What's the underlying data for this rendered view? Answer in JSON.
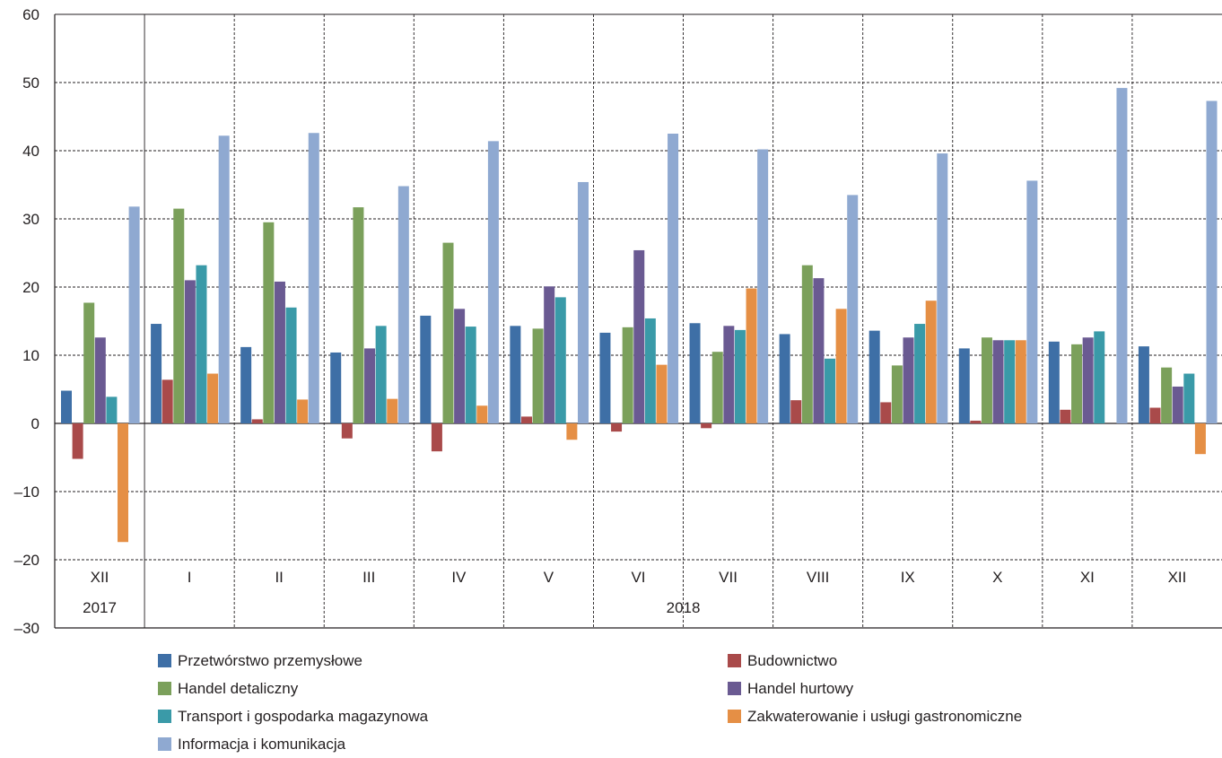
{
  "chart_data": {
    "type": "bar",
    "categories": [
      "XII",
      "I",
      "II",
      "III",
      "IV",
      "V",
      "VI",
      "VII",
      "VIII",
      "IX",
      "X",
      "XI",
      "XII"
    ],
    "year_groups": [
      {
        "label": "2017",
        "span": 1
      },
      {
        "label": "2018",
        "span": 12
      }
    ],
    "ylim": [
      -30,
      60
    ],
    "yticks": [
      -30,
      -20,
      -10,
      0,
      10,
      20,
      30,
      40,
      50,
      60
    ],
    "y_tick_labels": [
      "–30",
      "–20",
      "–10",
      "0",
      "10",
      "20",
      "30",
      "40",
      "50",
      "60"
    ],
    "grid": true,
    "legend_position": "bottom",
    "series": [
      {
        "name": "Przetwórstwo przemysłowe",
        "color": "#3e6fa6",
        "values": [
          4.8,
          14.6,
          11.2,
          10.4,
          15.8,
          14.3,
          13.3,
          14.7,
          13.1,
          13.6,
          11.0,
          12.0,
          11.3
        ]
      },
      {
        "name": "Budownictwo",
        "color": "#a94a4a",
        "values": [
          -5.2,
          6.4,
          0.6,
          -2.2,
          -4.1,
          1.0,
          -1.2,
          -0.7,
          3.4,
          3.1,
          0.4,
          2.0,
          2.3
        ]
      },
      {
        "name": "Handel detaliczny",
        "color": "#7ba05b",
        "values": [
          17.7,
          31.5,
          29.5,
          31.7,
          26.5,
          13.9,
          14.1,
          10.5,
          23.2,
          8.5,
          12.6,
          11.6,
          8.2
        ]
      },
      {
        "name": "Handel hurtowy",
        "color": "#6a5a92",
        "values": [
          12.6,
          21.0,
          20.8,
          11.0,
          16.8,
          20.1,
          25.4,
          14.3,
          21.3,
          12.6,
          12.2,
          12.6,
          5.4
        ]
      },
      {
        "name": "Transport i gospodarka magazynowa",
        "color": "#3a9aa8",
        "values": [
          3.9,
          23.2,
          17.0,
          14.3,
          14.2,
          18.5,
          15.4,
          13.7,
          9.5,
          14.6,
          12.2,
          13.5,
          7.3
        ]
      },
      {
        "name": "Zakwaterowanie i usługi gastronomiczne",
        "color": "#e58f45",
        "values": [
          -17.4,
          7.3,
          3.5,
          3.6,
          2.6,
          -2.4,
          8.6,
          19.8,
          16.8,
          18.0,
          12.2,
          0,
          -4.5
        ]
      },
      {
        "name": "Informacja i komunikacja",
        "color": "#8fa9d1",
        "values": [
          31.8,
          42.2,
          42.6,
          34.8,
          41.4,
          35.4,
          42.5,
          40.2,
          33.5,
          39.6,
          35.6,
          49.2,
          47.3
        ]
      }
    ]
  }
}
